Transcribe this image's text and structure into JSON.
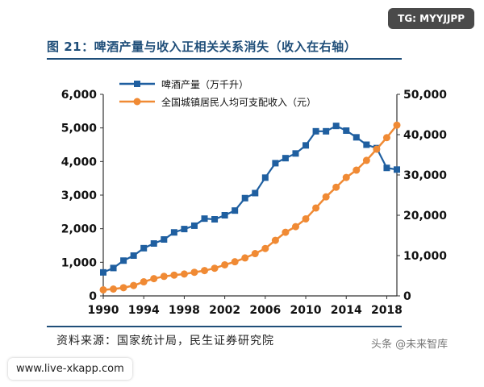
{
  "header_badge": "TG: MYYJJPP",
  "footer_url": "www.live-xkapp.com",
  "watermark": "头条 @未来智库",
  "source_text": "资料来源：国家统计局，民生证券研究院",
  "chart_data": {
    "type": "line",
    "title": "图 21：啤酒产量与收入正相关关系消失（收入在右轴）",
    "x_ticks": [
      "1990",
      "1994",
      "1998",
      "2002",
      "2006",
      "2010",
      "2014",
      "2018"
    ],
    "xlim": [
      1990,
      2019
    ],
    "y_left": {
      "ylim": [
        0,
        6000
      ],
      "ticks": [
        "0",
        "1,000",
        "2,000",
        "3,000",
        "4,000",
        "5,000",
        "6,000"
      ]
    },
    "y_right": {
      "ylim": [
        0,
        50000
      ],
      "ticks": [
        "0",
        "10,000",
        "20,000",
        "30,000",
        "40,000",
        "50,000"
      ]
    },
    "series": [
      {
        "name": "啤酒产量（万千升）",
        "axis": "left",
        "color": "#1f5fa0",
        "marker": "square",
        "x": [
          1990,
          1991,
          1992,
          1993,
          1994,
          1995,
          1996,
          1997,
          1998,
          1999,
          2000,
          2001,
          2002,
          2003,
          2004,
          2005,
          2006,
          2007,
          2008,
          2009,
          2010,
          2011,
          2012,
          2013,
          2014,
          2015,
          2016,
          2017,
          2018,
          2019
        ],
        "values": [
          700,
          830,
          1050,
          1200,
          1420,
          1560,
          1680,
          1890,
          1990,
          2090,
          2300,
          2280,
          2400,
          2540,
          2910,
          3060,
          3520,
          3950,
          4100,
          4240,
          4480,
          4900,
          4900,
          5060,
          4920,
          4720,
          4500,
          4400,
          3810,
          3760
        ]
      },
      {
        "name": "全国城镇居民人均可支配收入（元）",
        "axis": "right",
        "color": "#f08a34",
        "marker": "circle",
        "x": [
          1990,
          1991,
          1992,
          1993,
          1994,
          1995,
          1996,
          1997,
          1998,
          1999,
          2000,
          2001,
          2002,
          2003,
          2004,
          2005,
          2006,
          2007,
          2008,
          2009,
          2010,
          2011,
          2012,
          2013,
          2014,
          2015,
          2016,
          2017,
          2018,
          2019
        ],
        "values": [
          1510,
          1700,
          2027,
          2577,
          3496,
          4283,
          4839,
          5160,
          5425,
          5854,
          6280,
          6860,
          7703,
          8472,
          9422,
          10493,
          11759,
          13786,
          15781,
          17175,
          19109,
          21810,
          24565,
          26955,
          29381,
          31195,
          33616,
          36396,
          39251,
          42359
        ]
      }
    ]
  }
}
